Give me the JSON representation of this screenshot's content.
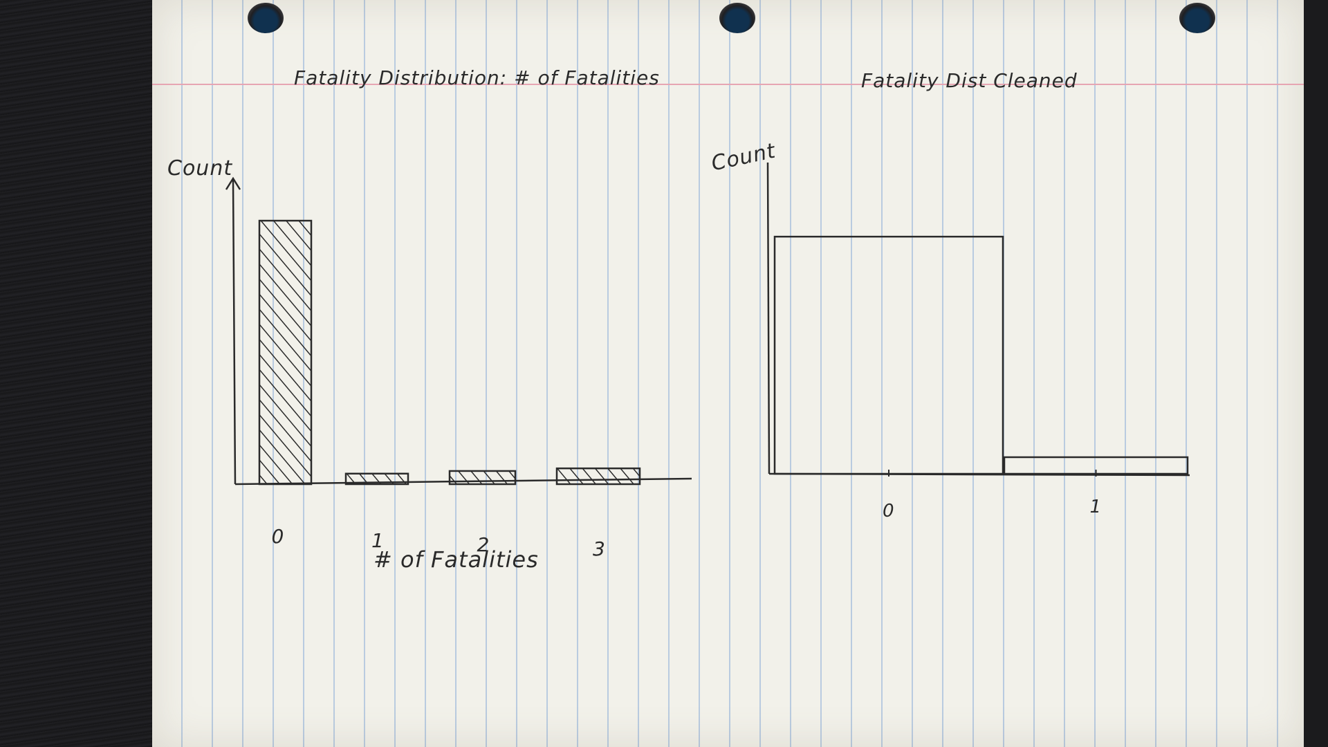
{
  "chart_data": [
    {
      "type": "bar",
      "title": "Fatality Distribution: # of Fatalities",
      "xlabel": "# of Fatalities",
      "ylabel": "Count",
      "categories": [
        "0",
        "1",
        "2",
        "3"
      ],
      "values": [
        100,
        4,
        5,
        6
      ],
      "ylim": [
        0,
        105
      ],
      "hatched": true,
      "grid": false
    },
    {
      "type": "bar",
      "title": "Fatality Dist Cleaned",
      "xlabel": "",
      "ylabel": "Count",
      "categories": [
        "0",
        "1"
      ],
      "values": [
        100,
        7
      ],
      "ylim": [
        0,
        105
      ],
      "hatched": false,
      "grid": false
    }
  ],
  "colors": {
    "ink": "#2a2a2a",
    "paper": "#f2f1ea",
    "rule": "#b9cbe0",
    "margin": "#e6a5b2"
  }
}
